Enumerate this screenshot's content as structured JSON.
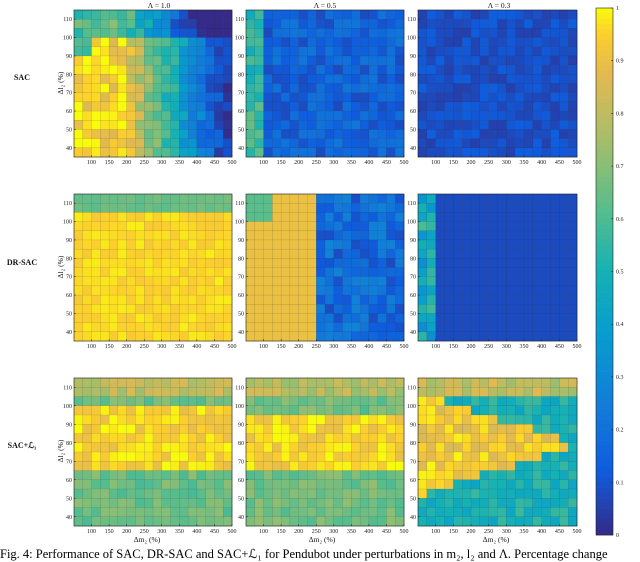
{
  "caption": "Fig. 4: Performance of SAC, DR-SAC and SAC+ℒ₁ for Pendubot under perturbations in m₂, l₂ and Λ. Percentage change",
  "colors": {
    "colormap": "parula",
    "low": "#3b2bd6",
    "mid": "#22b3b8",
    "high": "#f8f021"
  },
  "chart_data": {
    "type": "heatmap",
    "column_titles": [
      "Λ = 1.0",
      "Λ = 0.5",
      "Λ = 0.3"
    ],
    "row_labels": [
      "SAC",
      "DR-SAC",
      "SAC+ℒ₁"
    ],
    "xlabel": "Δm₂ (%)",
    "ylabel": "Δl₂ (%)",
    "x_ticks": [
      100,
      150,
      200,
      250,
      300,
      350,
      400,
      450,
      500
    ],
    "y_ticks": [
      40,
      50,
      60,
      70,
      80,
      90,
      100,
      110
    ],
    "xlim": [
      50,
      500
    ],
    "ylim": [
      35,
      115
    ],
    "grid_shape": [
      16,
      18
    ],
    "colorbar": {
      "ticks": [
        0,
        0.1,
        0.2,
        0.3,
        0.4,
        0.5,
        0.6,
        0.7,
        0.8,
        0.9,
        1
      ],
      "range": [
        0,
        1
      ]
    },
    "panels": [
      {
        "row": "SAC",
        "column": "Λ = 1.0",
        "approx_values": "high (0.8-1.0) for Δm₂ below ~250%, decreasing to ~0.2 at Δm₂ = 500%; ~0.5-0.7 band at Δl₂ above ~100%"
      },
      {
        "row": "SAC",
        "column": "Λ = 0.5",
        "approx_values": "~0.5-0.7 at Δm₂ below ~100%, ~0.1-0.2 elsewhere"
      },
      {
        "row": "SAC",
        "column": "Λ = 0.3",
        "approx_values": "~0.05-0.15 everywhere"
      },
      {
        "row": "DR-SAC",
        "column": "Λ = 1.0",
        "approx_values": "~0.95 everywhere; ~0.65 at Δl₂ above ~110%"
      },
      {
        "row": "DR-SAC",
        "column": "Λ = 0.5",
        "approx_values": "~0.9 for Δm₂ below ~225%, dropping to ~0.1-0.3 above; ~0.6 upper-left corner"
      },
      {
        "row": "DR-SAC",
        "column": "Λ = 0.3",
        "approx_values": "~0.1 everywhere except ~0.5 near Δm₂ = 50-100%"
      },
      {
        "row": "SAC+ℒ₁",
        "column": "Λ = 1.0",
        "approx_values": "~0.95 at Δl₂ 70-95%; ~0.65 at Δl₂ above 100% and below 60%"
      },
      {
        "row": "SAC+ℒ₁",
        "column": "Λ = 0.5",
        "approx_values": "~0.95 at Δl₂ 65-95%; ~0.65 elsewhere"
      },
      {
        "row": "SAC+ℒ₁",
        "column": "Λ = 0.3",
        "approx_values": "~0.9 in a wedge centred near Δl₂ = 80%; ~0.4-0.6 elsewhere"
      }
    ]
  }
}
